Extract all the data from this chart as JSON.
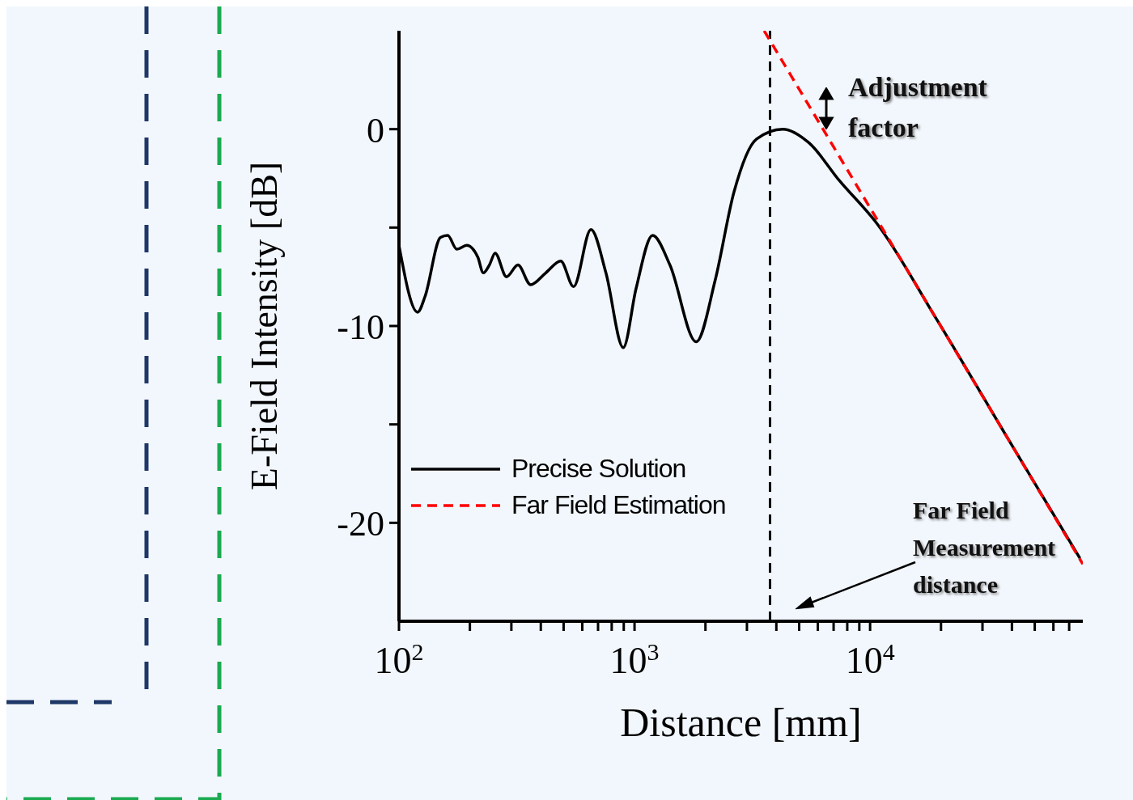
{
  "chart_data": {
    "type": "line",
    "xlabel": "Distance [mm]",
    "ylabel": "E-Field Intensity [dB]",
    "log": "x",
    "xlim": [
      100,
      80000
    ],
    "ylim": [
      -25,
      5
    ],
    "xticks": [
      {
        "value": 100,
        "label": "10$^{2}$"
      },
      {
        "value": 200,
        "label": null
      },
      {
        "value": 300,
        "label": null
      },
      {
        "value": 400,
        "label": null
      },
      {
        "value": 500,
        "label": null
      },
      {
        "value": 600,
        "label": null
      },
      {
        "value": 700,
        "label": null
      },
      {
        "value": 800,
        "label": null
      },
      {
        "value": 900,
        "label": null
      },
      {
        "value": 1000,
        "label": "10$^{3}$"
      },
      {
        "value": 2000,
        "label": null
      },
      {
        "value": 3000,
        "label": null
      },
      {
        "value": 4000,
        "label": null
      },
      {
        "value": 5000,
        "label": null
      },
      {
        "value": 6000,
        "label": null
      },
      {
        "value": 7000,
        "label": null
      },
      {
        "value": 8000,
        "label": null
      },
      {
        "value": 9000,
        "label": null
      },
      {
        "value": 10000,
        "label": "10$^{4}$"
      },
      {
        "value": 20000,
        "label": null
      },
      {
        "value": 30000,
        "label": null
      },
      {
        "value": 40000,
        "label": null
      },
      {
        "value": 50000,
        "label": null
      },
      {
        "value": 60000,
        "label": null
      },
      {
        "value": 70000,
        "label": null
      }
    ],
    "yticks": [
      {
        "value": -20,
        "label": "-20"
      },
      {
        "value": -15,
        "label": null
      },
      {
        "value": -10,
        "label": "-10"
      },
      {
        "value": -5,
        "label": null
      },
      0
    ],
    "legend": "bottom left",
    "marker": "none",
    "series": [
      {
        "name": "Precise Solution",
        "color": "#000000",
        "line_style": "solid",
        "x": [
          100,
          120,
          129,
          150,
          161,
          176,
          194,
          216,
          228,
          242,
          256,
          286,
          320,
          362,
          420,
          486,
          551,
          653,
          756,
          896,
          1015,
          1193,
          1413,
          1828,
          2197,
          2643,
          3296,
          4258,
          5508,
          7390,
          10700,
          19250,
          40180,
          77800
        ],
        "values": [
          -5.9,
          -9.3,
          -8.5,
          -5.5,
          -5.4,
          -6.1,
          -5.9,
          -6.5,
          -7.3,
          -6.9,
          -6.3,
          -7.5,
          -6.9,
          -7.9,
          -7.3,
          -6.7,
          -8.0,
          -5.1,
          -7.3,
          -11.1,
          -8.1,
          -5.4,
          -6.9,
          -10.8,
          -7.7,
          -3.2,
          -0.5,
          0,
          -0.7,
          -2.6,
          -4.8,
          -9.7,
          -16.1,
          -21.8
        ]
      },
      {
        "name": "Far Field Estimation",
        "color": "#ff0000",
        "line_style": "dashed",
        "x": [
          3550,
          10000,
          80000
        ],
        "values": [
          5,
          -4,
          -22.1
        ]
      }
    ],
    "ref_lines": [
      {
        "axis": "x",
        "value": 3760,
        "color": "#000000",
        "line_style": "dashed"
      }
    ],
    "annotations": [
      "Adjustment factor",
      "Far Field Measurement distance"
    ]
  }
}
